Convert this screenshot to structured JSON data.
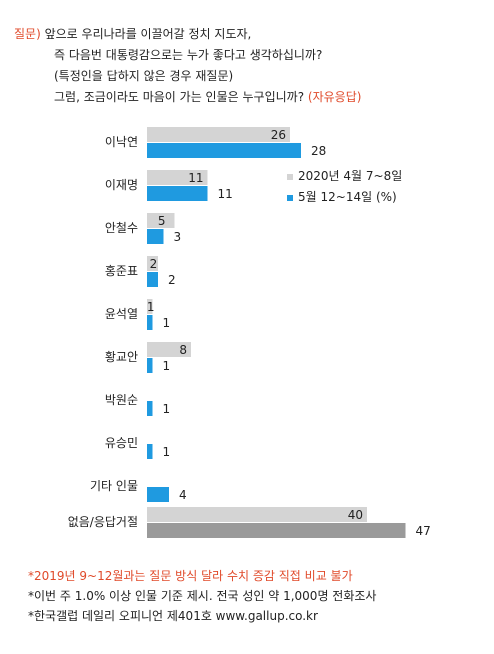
{
  "question": {
    "tag": "질문)",
    "line1": "앞으로 우리나라를 이끌어갈 정치 지도자,",
    "line2": "즉 다음번 대통령감으로는 누가 좋다고 생각하십니까?",
    "line3": "(특정인을 답하지 않은 경우 재질문)",
    "line4": "그럼, 조금이라도 마음이 가는 인물은 누구입니까?",
    "line4_suffix": "(자유응답)"
  },
  "chart_data": {
    "type": "bar",
    "orientation": "horizontal",
    "categories": [
      "이낙연",
      "이재명",
      "안철수",
      "홍준표",
      "윤석열",
      "황교안",
      "박원순",
      "유승민",
      "기타 인물",
      "없음/응답거절"
    ],
    "series": [
      {
        "name": "2020년 4월 7~8일",
        "color": "#d4d4d4",
        "values": [
          26,
          11,
          5,
          2,
          1,
          8,
          null,
          null,
          null,
          40
        ]
      },
      {
        "name": "5월 12~14일 (%)",
        "color": "#1f9ae0",
        "values": [
          28,
          11,
          3,
          2,
          1,
          1,
          1,
          1,
          4,
          47
        ]
      }
    ],
    "last_category_colors": [
      "#d4d4d4",
      "#9a9a9a"
    ],
    "legend_position": "right",
    "grid": false,
    "xlim": [
      0,
      50
    ]
  },
  "notes": {
    "note1": "*2019년 9~12월과는 질문 방식 달라 수치 증감 직접 비교 불가",
    "note2": "*이번 주 1.0% 이상 인물 기준 제시. 전국 성인 약 1,000명 전화조사",
    "note3": "*한국갤럽 데일리 오피니언 제401호 www.gallup.co.kr"
  }
}
